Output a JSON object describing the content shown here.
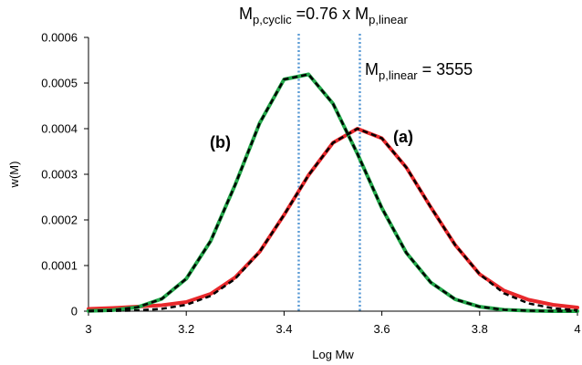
{
  "chart_data": {
    "type": "line",
    "xlabel": "Log Mw",
    "ylabel": "w(M)",
    "x": [
      3.0,
      3.05,
      3.1,
      3.15,
      3.2,
      3.25,
      3.3,
      3.35,
      3.4,
      3.45,
      3.5,
      3.55,
      3.6,
      3.65,
      3.7,
      3.75,
      3.8,
      3.85,
      3.9,
      3.95,
      4.0
    ],
    "series": [
      {
        "color": "#e8282b",
        "width": 4,
        "dash": false,
        "values": [
          5e-06,
          7e-06,
          1e-05,
          1.3e-05,
          2e-05,
          3.8e-05,
          7.4e-05,
          0.00013,
          0.000211,
          0.000298,
          0.000369,
          0.0004,
          0.000379,
          0.000315,
          0.000228,
          0.000145,
          8.1e-05,
          4.5e-05,
          2.5e-05,
          1.4e-05,
          8e-06
        ]
      },
      {
        "color": "#22a84a",
        "width": 4,
        "dash": false,
        "values": [
          5e-07,
          2.2e-06,
          8.5e-06,
          2.7e-05,
          7.1e-05,
          0.000154,
          0.000277,
          0.000412,
          0.000508,
          0.000519,
          0.000455,
          0.000345,
          0.000226,
          0.000128,
          6.3e-05,
          2.6e-05,
          9.7e-06,
          3e-06,
          1e-06,
          0,
          0
        ]
      },
      {
        "color": "#000000",
        "width": 2.5,
        "dash": true,
        "values": [
          1e-07,
          5e-07,
          1.6e-06,
          5.1e-06,
          1.39e-05,
          3.35e-05,
          7.08e-05,
          0.00013,
          0.000211,
          0.000298,
          0.000369,
          0.0004,
          0.000379,
          0.000315,
          0.000228,
          0.000145,
          8.1e-05,
          3.9e-05,
          1.7e-05,
          6.3e-06,
          2e-06
        ]
      },
      {
        "color": "#000000",
        "width": 2.5,
        "dash": true,
        "values": [
          5e-07,
          2.2e-06,
          8.5e-06,
          2.7e-05,
          7.1e-05,
          0.000154,
          0.000277,
          0.000412,
          0.000508,
          0.000519,
          0.000455,
          0.000345,
          0.000226,
          0.000128,
          6.3e-05,
          2.6e-05,
          9.7e-06,
          3e-06,
          1e-06,
          0,
          0
        ]
      }
    ],
    "xlim": [
      3,
      4
    ],
    "xticks": [
      3,
      3.2,
      3.4,
      3.6,
      3.8,
      4
    ],
    "ylim": [
      0,
      0.0006
    ],
    "yticks": [
      0,
      0.0001,
      0.0002,
      0.0003,
      0.0004,
      0.0005,
      0.0006
    ],
    "grid": false,
    "vlines": {
      "color": "#5b9bd5",
      "x": [
        3.43,
        3.555
      ]
    },
    "annotations": {
      "ratio": [
        "M",
        "p,cyclic",
        " =0.76 x M",
        "p,linear"
      ],
      "linear": [
        "M",
        "p,linear",
        " = 3555"
      ],
      "a": "(a)",
      "b": "(b)"
    }
  }
}
